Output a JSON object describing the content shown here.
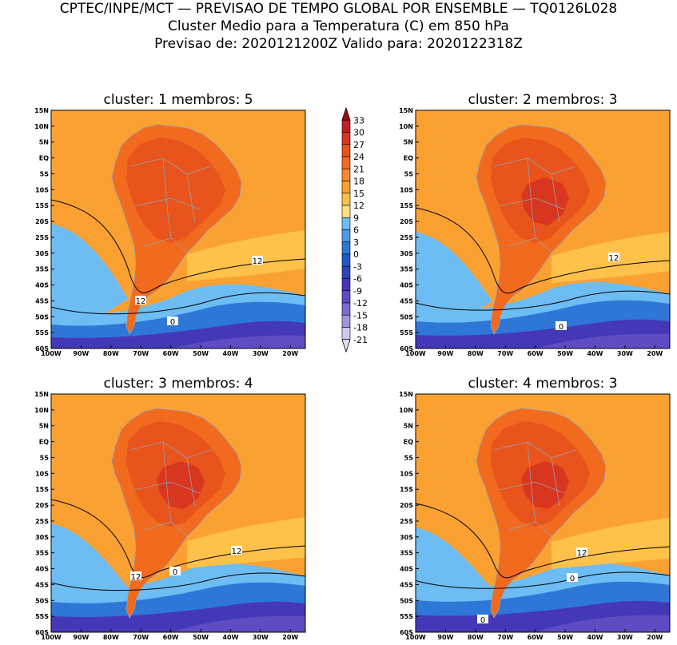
{
  "header": {
    "line1": "CPTEC/INPE/MCT — PREVISAO DE TEMPO GLOBAL POR ENSEMBLE — TQ0126L028",
    "line2": "Cluster Medio para a Temperatura (C) em 850 hPa",
    "line3": "Previsao de: 2020121200Z   Valido para: 2020122318Z"
  },
  "panels": [
    {
      "title": "cluster: 1   membros: 5",
      "contours": [
        "12",
        "12",
        "0"
      ]
    },
    {
      "title": "cluster: 2   membros: 3",
      "contours": [
        "12",
        "0"
      ]
    },
    {
      "title": "cluster: 3   membros: 4",
      "contours": [
        "12",
        "12",
        "0"
      ]
    },
    {
      "title": "cluster: 4   membros: 3",
      "contours": [
        "12",
        "0",
        "0"
      ]
    }
  ],
  "axes": {
    "lat_labels": [
      "15N",
      "10N",
      "5N",
      "EQ",
      "5S",
      "10S",
      "15S",
      "20S",
      "25S",
      "30S",
      "35S",
      "40S",
      "45S",
      "50S",
      "55S",
      "60S"
    ],
    "lon_labels": [
      "100W",
      "90W",
      "80W",
      "70W",
      "60W",
      "50W",
      "40W",
      "30W",
      "20W"
    ]
  },
  "colorbar": {
    "labels": [
      "33",
      "30",
      "27",
      "24",
      "21",
      "18",
      "15",
      "12",
      "9",
      "6",
      "3",
      "0",
      "-3",
      "-6",
      "-9",
      "-12",
      "-15",
      "-18",
      "-21"
    ],
    "colors": [
      "#a00b16",
      "#c01e20",
      "#d8361f",
      "#e8541c",
      "#f26a1d",
      "#f9882a",
      "#fba132",
      "#fec14a",
      "#fee27c",
      "#6dbcf4",
      "#4e9ae6",
      "#2f77d7",
      "#1e58c6",
      "#2c45b8",
      "#4538b8",
      "#5d4cc4",
      "#7b6cd2",
      "#a396e1",
      "#cfc8f0",
      "#e6e0f8"
    ]
  },
  "colors": {
    "ocean_tropical": "#fba132",
    "land_hot": "#f26a1d",
    "land_core": "#e8541c",
    "warm_belt": "#fec14a",
    "cold_lightblue": "#6dbcf4",
    "cold_mid": "#2f77d7",
    "cold_deep": "#4538b8",
    "cold_deepest": "#5d4cc4"
  }
}
